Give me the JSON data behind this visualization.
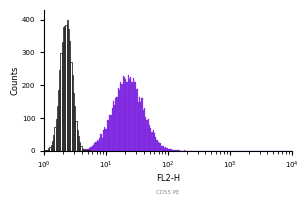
{
  "title": "",
  "xlabel": "FL2-H",
  "ylabel": "Counts",
  "xlim_log": [
    0,
    4
  ],
  "ylim": [
    0,
    430
  ],
  "yticks": [
    0,
    100,
    200,
    300,
    400
  ],
  "ytick_labels": [
    "0",
    "100",
    "200",
    "300",
    "400"
  ],
  "background_color": "#ffffff",
  "control_color": "#000000",
  "sample_color": "#7B1FE0",
  "sample_alpha": 0.9,
  "control_log_mean": 0.35,
  "control_log_std": 0.22,
  "sample_log_mean": 1.35,
  "sample_log_std": 0.55,
  "note": "Flow cytometry FACS - control peaks near 10^0.3, sample broad peak near 10^1.3"
}
